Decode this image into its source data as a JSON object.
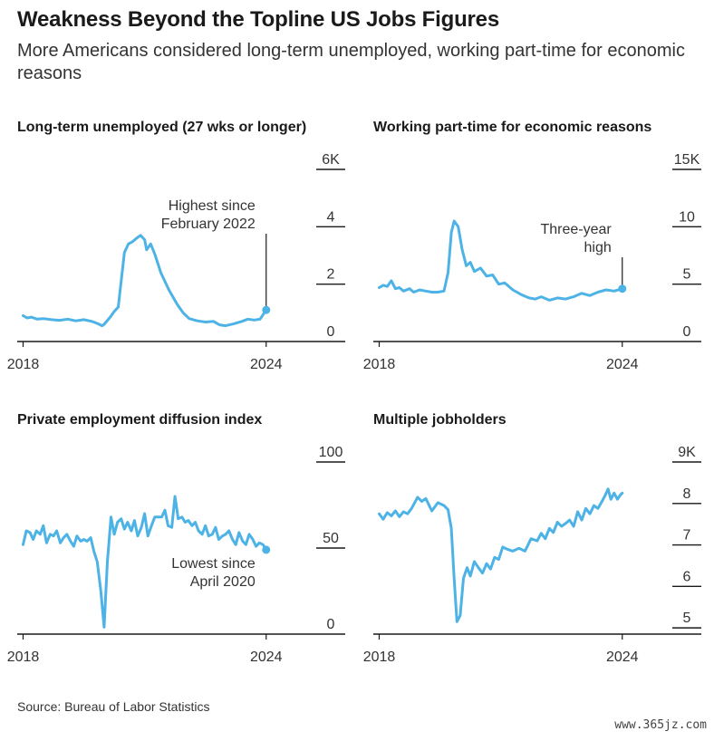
{
  "header": {
    "title": "Weakness Beyond the Topline US Jobs Figures",
    "subtitle": "More Americans considered long-term unemployed, working part-time for economic reasons"
  },
  "footer": {
    "source": "Source: Bureau of Labor Statistics",
    "watermark": "www.365jz.com"
  },
  "colors": {
    "line": "#4db3e6",
    "axis": "#1a1a1a",
    "text": "#333333"
  },
  "chart_data": [
    {
      "type": "line",
      "title": "Long-term unemployed (27 wks or longer)",
      "x_ticks": [
        2018,
        2024
      ],
      "y_ticks": [
        {
          "v": 0,
          "label": "0"
        },
        {
          "v": 2,
          "label": "2"
        },
        {
          "v": 4,
          "label": "4"
        },
        {
          "v": 6,
          "label": "6K"
        }
      ],
      "ylim": [
        0,
        6
      ],
      "xlim": [
        2017.9,
        2024.9
      ],
      "annotation": {
        "lines": [
          "Highest since",
          "February 2022"
        ],
        "x": 2024.0,
        "y": 1.1
      },
      "series": [
        {
          "values": [
            [
              2018.0,
              0.9
            ],
            [
              2018.1,
              0.82
            ],
            [
              2018.2,
              0.85
            ],
            [
              2018.35,
              0.78
            ],
            [
              2018.5,
              0.8
            ],
            [
              2018.7,
              0.76
            ],
            [
              2018.9,
              0.74
            ],
            [
              2019.1,
              0.78
            ],
            [
              2019.3,
              0.72
            ],
            [
              2019.5,
              0.76
            ],
            [
              2019.7,
              0.7
            ],
            [
              2019.85,
              0.62
            ],
            [
              2019.95,
              0.55
            ],
            [
              2020.0,
              0.6
            ],
            [
              2020.15,
              0.85
            ],
            [
              2020.25,
              1.05
            ],
            [
              2020.35,
              1.2
            ],
            [
              2020.5,
              3.1
            ],
            [
              2020.6,
              3.4
            ],
            [
              2020.7,
              3.48
            ],
            [
              2020.8,
              3.6
            ],
            [
              2020.9,
              3.7
            ],
            [
              2021.0,
              3.55
            ],
            [
              2021.05,
              3.2
            ],
            [
              2021.15,
              3.4
            ],
            [
              2021.25,
              3.05
            ],
            [
              2021.4,
              2.4
            ],
            [
              2021.6,
              1.8
            ],
            [
              2021.8,
              1.3
            ],
            [
              2021.95,
              1.0
            ],
            [
              2022.1,
              0.8
            ],
            [
              2022.3,
              0.72
            ],
            [
              2022.5,
              0.68
            ],
            [
              2022.7,
              0.7
            ],
            [
              2022.85,
              0.58
            ],
            [
              2023.0,
              0.55
            ],
            [
              2023.2,
              0.62
            ],
            [
              2023.4,
              0.7
            ],
            [
              2023.55,
              0.78
            ],
            [
              2023.7,
              0.75
            ],
            [
              2023.85,
              0.78
            ],
            [
              2024.0,
              1.1
            ]
          ]
        }
      ]
    },
    {
      "type": "line",
      "title": "Working part-time for economic reasons",
      "x_ticks": [
        2018,
        2024
      ],
      "y_ticks": [
        {
          "v": 0,
          "label": "0"
        },
        {
          "v": 5,
          "label": "5"
        },
        {
          "v": 10,
          "label": "10"
        },
        {
          "v": 15,
          "label": "15K"
        }
      ],
      "ylim": [
        0,
        15
      ],
      "xlim": [
        2017.9,
        2024.9
      ],
      "annotation": {
        "lines": [
          "Three-year",
          "high"
        ],
        "x": 2024.0,
        "y": 4.6
      },
      "series": [
        {
          "values": [
            [
              2018.0,
              4.7
            ],
            [
              2018.1,
              4.9
            ],
            [
              2018.2,
              4.8
            ],
            [
              2018.3,
              5.3
            ],
            [
              2018.4,
              4.6
            ],
            [
              2018.5,
              4.7
            ],
            [
              2018.6,
              4.4
            ],
            [
              2018.75,
              4.6
            ],
            [
              2018.85,
              4.3
            ],
            [
              2019.0,
              4.5
            ],
            [
              2019.15,
              4.4
            ],
            [
              2019.3,
              4.3
            ],
            [
              2019.45,
              4.3
            ],
            [
              2019.6,
              4.4
            ],
            [
              2019.7,
              6.0
            ],
            [
              2019.78,
              9.5
            ],
            [
              2019.85,
              10.5
            ],
            [
              2019.95,
              10.0
            ],
            [
              2020.05,
              8.0
            ],
            [
              2020.15,
              6.6
            ],
            [
              2020.25,
              6.9
            ],
            [
              2020.35,
              6.1
            ],
            [
              2020.5,
              6.4
            ],
            [
              2020.65,
              5.7
            ],
            [
              2020.8,
              5.8
            ],
            [
              2020.95,
              5.0
            ],
            [
              2021.1,
              5.1
            ],
            [
              2021.3,
              4.5
            ],
            [
              2021.5,
              4.1
            ],
            [
              2021.7,
              3.8
            ],
            [
              2021.85,
              3.7
            ],
            [
              2022.0,
              3.9
            ],
            [
              2022.2,
              3.6
            ],
            [
              2022.4,
              3.8
            ],
            [
              2022.6,
              3.7
            ],
            [
              2022.8,
              3.9
            ],
            [
              2023.0,
              4.2
            ],
            [
              2023.2,
              4.0
            ],
            [
              2023.4,
              4.3
            ],
            [
              2023.6,
              4.5
            ],
            [
              2023.8,
              4.4
            ],
            [
              2024.0,
              4.6
            ]
          ]
        }
      ]
    },
    {
      "type": "line",
      "title": "Private employment diffusion index",
      "x_ticks": [
        2018,
        2024
      ],
      "y_ticks": [
        {
          "v": 0,
          "label": "0"
        },
        {
          "v": 50,
          "label": "50"
        },
        {
          "v": 100,
          "label": "100"
        }
      ],
      "ylim": [
        0,
        100
      ],
      "xlim": [
        2017.9,
        2024.9
      ],
      "annotation": {
        "lines": [
          "Lowest since",
          "April 2020"
        ],
        "x": 2024.0,
        "y": 49
      },
      "series": [
        {
          "values": [
            [
              2018.0,
              52
            ],
            [
              2018.08,
              60
            ],
            [
              2018.17,
              59
            ],
            [
              2018.25,
              55
            ],
            [
              2018.33,
              60
            ],
            [
              2018.42,
              58
            ],
            [
              2018.5,
              63
            ],
            [
              2018.58,
              53
            ],
            [
              2018.67,
              58
            ],
            [
              2018.75,
              57
            ],
            [
              2018.83,
              60
            ],
            [
              2018.92,
              53
            ],
            [
              2019.0,
              56
            ],
            [
              2019.08,
              58
            ],
            [
              2019.17,
              54
            ],
            [
              2019.25,
              51
            ],
            [
              2019.33,
              57
            ],
            [
              2019.42,
              54
            ],
            [
              2019.5,
              55
            ],
            [
              2019.58,
              54
            ],
            [
              2019.67,
              56
            ],
            [
              2019.75,
              48
            ],
            [
              2019.83,
              42
            ],
            [
              2019.92,
              25
            ],
            [
              2020.0,
              4
            ],
            [
              2020.08,
              42
            ],
            [
              2020.17,
              68
            ],
            [
              2020.25,
              58
            ],
            [
              2020.33,
              65
            ],
            [
              2020.42,
              67
            ],
            [
              2020.5,
              61
            ],
            [
              2020.58,
              65
            ],
            [
              2020.67,
              60
            ],
            [
              2020.75,
              66
            ],
            [
              2020.83,
              57
            ],
            [
              2020.92,
              62
            ],
            [
              2021.0,
              70
            ],
            [
              2021.08,
              57
            ],
            [
              2021.17,
              63
            ],
            [
              2021.25,
              68
            ],
            [
              2021.33,
              68
            ],
            [
              2021.42,
              68
            ],
            [
              2021.5,
              72
            ],
            [
              2021.58,
              63
            ],
            [
              2021.67,
              62
            ],
            [
              2021.75,
              80
            ],
            [
              2021.83,
              67
            ],
            [
              2021.92,
              68
            ],
            [
              2022.0,
              65
            ],
            [
              2022.08,
              66
            ],
            [
              2022.17,
              63
            ],
            [
              2022.25,
              65
            ],
            [
              2022.33,
              60
            ],
            [
              2022.42,
              58
            ],
            [
              2022.5,
              63
            ],
            [
              2022.58,
              57
            ],
            [
              2022.67,
              58
            ],
            [
              2022.75,
              62
            ],
            [
              2022.83,
              55
            ],
            [
              2022.92,
              57
            ],
            [
              2023.0,
              58
            ],
            [
              2023.08,
              60
            ],
            [
              2023.17,
              55
            ],
            [
              2023.25,
              52
            ],
            [
              2023.33,
              59
            ],
            [
              2023.42,
              54
            ],
            [
              2023.5,
              52
            ],
            [
              2023.58,
              58
            ],
            [
              2023.67,
              55
            ],
            [
              2023.75,
              51
            ],
            [
              2023.83,
              53
            ],
            [
              2023.92,
              52
            ],
            [
              2024.0,
              49
            ]
          ]
        }
      ]
    },
    {
      "type": "line",
      "title": "Multiple jobholders",
      "x_ticks": [
        2018,
        2024
      ],
      "y_ticks": [
        {
          "v": 5,
          "label": "5"
        },
        {
          "v": 6,
          "label": "6"
        },
        {
          "v": 7,
          "label": "7"
        },
        {
          "v": 8,
          "label": "8"
        },
        {
          "v": 9,
          "label": "9K"
        }
      ],
      "ylim": [
        4.85,
        9.0
      ],
      "xlim": [
        2017.9,
        2024.9
      ],
      "annotation": null,
      "series": [
        {
          "values": [
            [
              2018.0,
              7.75
            ],
            [
              2018.1,
              7.62
            ],
            [
              2018.2,
              7.78
            ],
            [
              2018.3,
              7.7
            ],
            [
              2018.4,
              7.82
            ],
            [
              2018.5,
              7.68
            ],
            [
              2018.6,
              7.8
            ],
            [
              2018.7,
              7.75
            ],
            [
              2018.8,
              7.88
            ],
            [
              2018.95,
              8.15
            ],
            [
              2019.05,
              8.05
            ],
            [
              2019.15,
              8.12
            ],
            [
              2019.3,
              7.82
            ],
            [
              2019.45,
              8.02
            ],
            [
              2019.6,
              7.95
            ],
            [
              2019.7,
              7.85
            ],
            [
              2019.78,
              7.4
            ],
            [
              2019.85,
              6.2
            ],
            [
              2019.92,
              5.15
            ],
            [
              2020.0,
              5.3
            ],
            [
              2020.08,
              6.2
            ],
            [
              2020.17,
              6.45
            ],
            [
              2020.25,
              6.25
            ],
            [
              2020.35,
              6.6
            ],
            [
              2020.45,
              6.45
            ],
            [
              2020.55,
              6.32
            ],
            [
              2020.65,
              6.55
            ],
            [
              2020.75,
              6.42
            ],
            [
              2020.85,
              6.7
            ],
            [
              2020.95,
              6.65
            ],
            [
              2021.05,
              6.95
            ],
            [
              2021.15,
              6.9
            ],
            [
              2021.3,
              6.85
            ],
            [
              2021.45,
              6.92
            ],
            [
              2021.6,
              6.85
            ],
            [
              2021.75,
              7.15
            ],
            [
              2021.9,
              7.1
            ],
            [
              2022.0,
              7.28
            ],
            [
              2022.1,
              7.15
            ],
            [
              2022.2,
              7.4
            ],
            [
              2022.3,
              7.3
            ],
            [
              2022.4,
              7.55
            ],
            [
              2022.5,
              7.45
            ],
            [
              2022.6,
              7.52
            ],
            [
              2022.7,
              7.6
            ],
            [
              2022.8,
              7.45
            ],
            [
              2022.9,
              7.8
            ],
            [
              2023.0,
              7.6
            ],
            [
              2023.1,
              7.88
            ],
            [
              2023.2,
              7.75
            ],
            [
              2023.3,
              7.95
            ],
            [
              2023.4,
              7.88
            ],
            [
              2023.5,
              8.05
            ],
            [
              2023.58,
              8.2
            ],
            [
              2023.65,
              8.35
            ],
            [
              2023.72,
              8.1
            ],
            [
              2023.8,
              8.25
            ],
            [
              2023.88,
              8.1
            ],
            [
              2023.95,
              8.2
            ],
            [
              2024.0,
              8.25
            ]
          ]
        }
      ]
    }
  ]
}
